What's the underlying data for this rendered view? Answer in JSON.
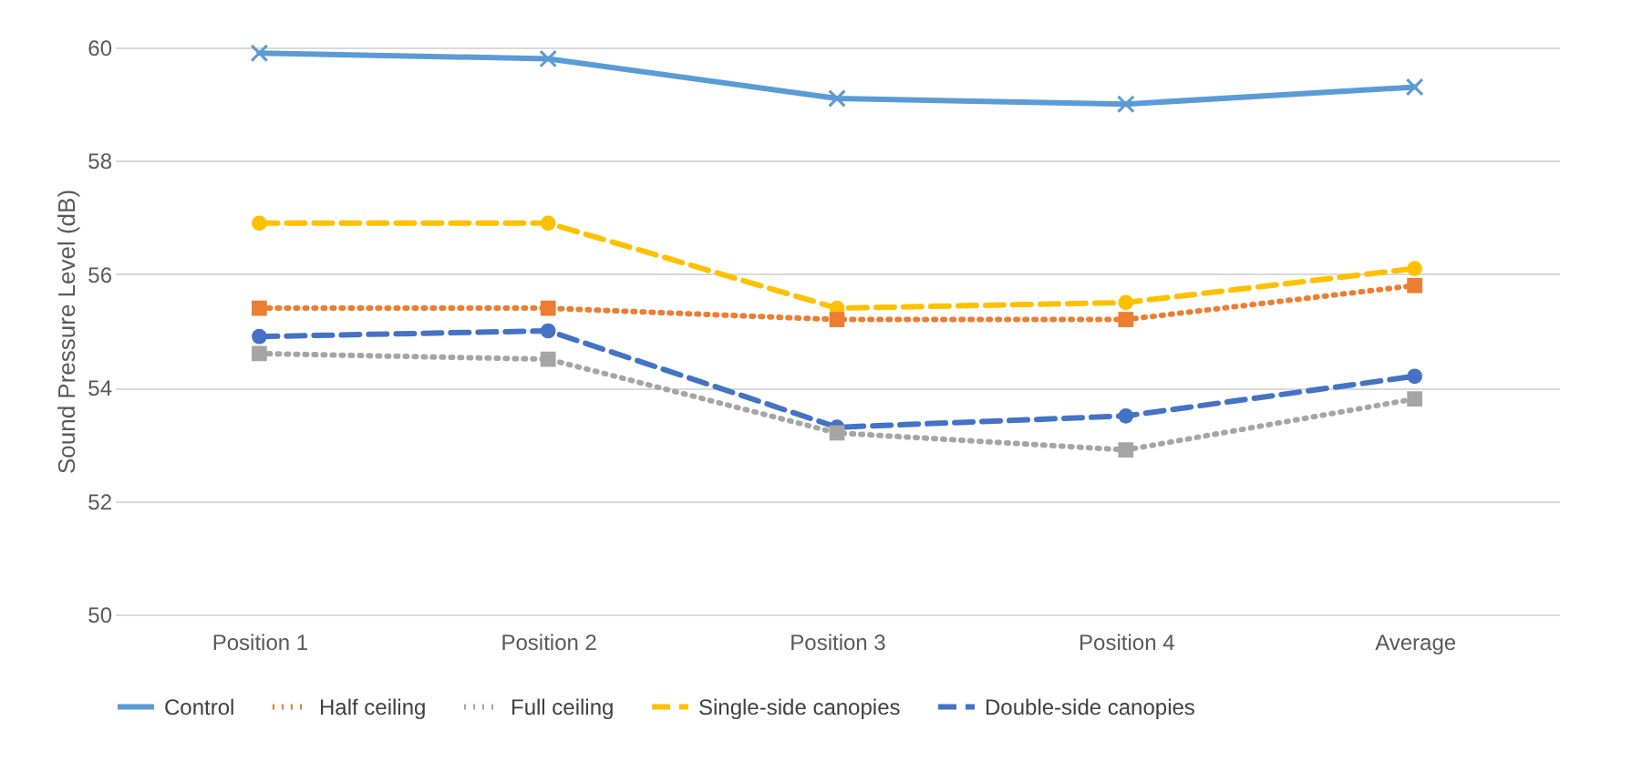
{
  "chart_data": {
    "type": "line",
    "ylabel": "Sound Pressure Level (dB)",
    "categories": [
      "Position 1",
      "Position 2",
      "Position 3",
      "Position 4",
      "Average"
    ],
    "series": [
      {
        "name": "Control",
        "color": "#5b9bd5",
        "marker": "cross",
        "line_style": "solid",
        "values": [
          59.9,
          59.8,
          59.1,
          59.0,
          59.3
        ]
      },
      {
        "name": "Half ceiling",
        "color": "#ed7d31",
        "marker": "square",
        "line_style": "dotted",
        "values": [
          55.4,
          55.4,
          55.2,
          55.2,
          55.8
        ]
      },
      {
        "name": "Full ceiling",
        "color": "#a5a5a5",
        "marker": "square",
        "line_style": "dotted",
        "values": [
          54.6,
          54.5,
          53.2,
          52.9,
          53.8
        ]
      },
      {
        "name": "Single-side canopies",
        "color": "#ffc000",
        "marker": "circle",
        "line_style": "dashed",
        "values": [
          56.9,
          56.9,
          55.4,
          55.5,
          56.1
        ]
      },
      {
        "name": "Double-side canopies",
        "color": "#4472c4",
        "marker": "circle",
        "line_style": "dashed",
        "values": [
          54.9,
          55.0,
          53.3,
          53.5,
          54.2
        ]
      }
    ],
    "ylim": [
      50,
      60
    ],
    "yticks": [
      50,
      52,
      54,
      56,
      58,
      60
    ],
    "grid": "y",
    "legend": "bottom"
  }
}
